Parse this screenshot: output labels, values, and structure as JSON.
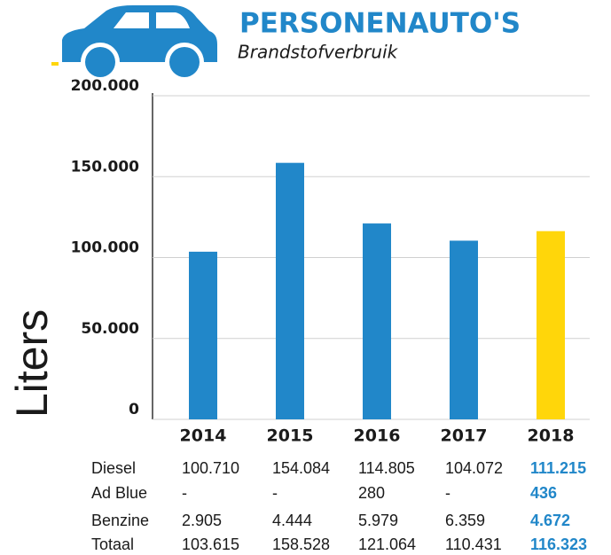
{
  "chart_data": {
    "type": "bar",
    "title": "PERSONENAUTO'S",
    "subtitle": "Brandstofverbruik",
    "y_label": "Liters",
    "categories": [
      "2014",
      "2015",
      "2016",
      "2017",
      "2018"
    ],
    "colors": [
      "#2187c9",
      "#2187c9",
      "#2187c9",
      "#2187c9",
      "#ffd60a"
    ],
    "series": [
      {
        "name": "Diesel",
        "values": [
          100710,
          154084,
          114805,
          104072,
          111215
        ],
        "value_labels": [
          "100.710",
          "154.084",
          "114.805",
          "104.072",
          "111.215"
        ]
      },
      {
        "name": "Ad Blue",
        "values": [
          null,
          null,
          280,
          null,
          436
        ],
        "value_labels": [
          "-",
          "-",
          "280",
          "-",
          "436"
        ]
      },
      {
        "name": "Benzine",
        "values": [
          2905,
          4444,
          5979,
          6359,
          4672
        ],
        "value_labels": [
          "2.905",
          "4.444",
          "5.979",
          "6.359",
          "4.672"
        ]
      },
      {
        "name": "Totaal",
        "values": [
          103615,
          158528,
          121064,
          110431,
          116323
        ],
        "value_labels": [
          "103.615",
          "158.528",
          "121.064",
          "110.431",
          "116.323"
        ]
      }
    ],
    "ylim": [
      0,
      200000
    ],
    "yticks": [
      0,
      {
        "value": 50000,
        "label": "50.000"
      },
      {
        "value": 100000,
        "label": "100.000"
      },
      {
        "value": 150000,
        "label": "150.000"
      },
      {
        "value": 200000,
        "label": "200.000"
      }
    ],
    "grid": true
  }
}
